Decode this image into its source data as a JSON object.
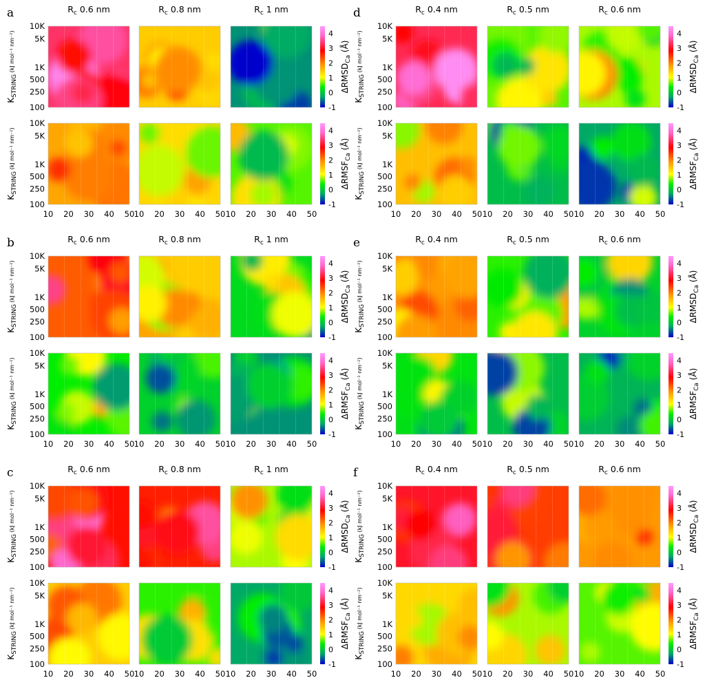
{
  "chart_data": {
    "type": "heatmap",
    "panel_letters": [
      "a",
      "b",
      "c",
      "d",
      "e",
      "f"
    ],
    "x_ticks": [
      "10",
      "20",
      "30",
      "40",
      "50"
    ],
    "x_ticks_clipped": [
      "10",
      "20",
      "30",
      "40",
      "50"
    ],
    "y_ticks": [
      "10K",
      "5K",
      "1K",
      "500",
      "250",
      "100"
    ],
    "ylabel": {
      "main": "K",
      "sub": "STRING",
      "unit": "(kJ mol⁻¹ nm⁻²)"
    },
    "colorbar_ticks": [
      "4",
      "3",
      "2",
      "1",
      "0",
      "-1"
    ],
    "colorbar_labels": {
      "rmsd": "ΔRMSD",
      "rmsf": "ΔRMSF",
      "sub": "Ca",
      "unit": "(Å)"
    },
    "colorbar_range": [
      -1,
      4.5
    ],
    "colormap": [
      "#0000cc",
      "#00aa66",
      "#00ee00",
      "#ffff00",
      "#ff9900",
      "#ff0000",
      "#ff66cc",
      "#ff99ff"
    ],
    "left_block": {
      "rc_titles": [
        {
          "r": "R",
          "c": "c",
          "val": " 0.6 nm"
        },
        {
          "r": "R",
          "c": "c",
          "val": " 0.8 nm"
        },
        {
          "r": "R",
          "c": "c",
          "val": " 1 nm"
        }
      ]
    },
    "right_block": {
      "rc_titles": [
        {
          "r": "R",
          "c": "c",
          "val": " 0.4 nm"
        },
        {
          "r": "R",
          "c": "c",
          "val": " 0.5 nm"
        },
        {
          "r": "R",
          "c": "c",
          "val": " 0.6 nm"
        }
      ]
    },
    "panel_levels": {
      "a": [
        [
          3.3,
          1.4,
          -0.4
        ],
        [
          1.7,
          1.3,
          0.6
        ]
      ],
      "b": [
        [
          2.2,
          1.4,
          0.2
        ],
        [
          0.4,
          0.1,
          -0.4
        ]
      ],
      "c": [
        [
          2.7,
          2.6,
          0.8
        ],
        [
          1.4,
          0.5,
          -0.3
        ]
      ],
      "d": [
        [
          3.2,
          0.6,
          0.8
        ],
        [
          1.5,
          -0.1,
          -0.3
        ]
      ],
      "e": [
        [
          1.9,
          0.5,
          0.1
        ],
        [
          0.3,
          -0.1,
          -0.2
        ]
      ],
      "f": [
        [
          3.0,
          2.4,
          1.8
        ],
        [
          1.3,
          0.8,
          0.6
        ]
      ]
    }
  }
}
